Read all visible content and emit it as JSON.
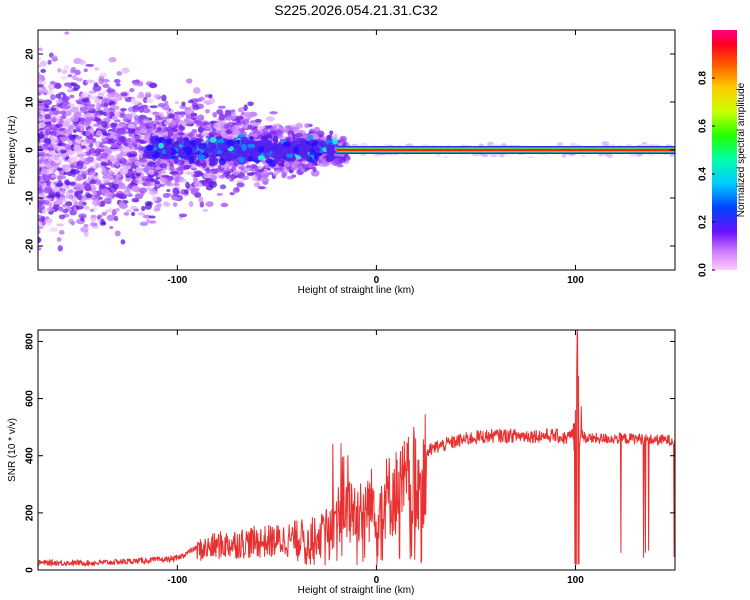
{
  "chart_data": [
    {
      "type": "heatmap",
      "title": "S225.2026.054.21.31.C32",
      "xlabel": "Height of straight line (km)",
      "ylabel": "Frequency (Hz)",
      "xlim": [
        -170,
        150
      ],
      "ylim": [
        -25,
        25
      ],
      "x_ticks": [
        -100,
        0,
        100
      ],
      "y_ticks": [
        20,
        10,
        0,
        -10,
        -20
      ],
      "colorbar": {
        "label": "Normalized spectral amplitude",
        "range": [
          0.0,
          1.0
        ],
        "ticks": [
          "0.0",
          "0.2",
          "0.4",
          "0.6",
          "0.8"
        ],
        "colormap": [
          "#ff99ff",
          "#9933ff",
          "#3311ff",
          "#0088ff",
          "#00ffcc",
          "#00ff00",
          "#ccff00",
          "#ffff00",
          "#ff8800",
          "#ff0000",
          "#ff0066"
        ]
      },
      "features": {
        "carrier_line": {
          "x_range": [
            -20,
            150
          ],
          "frequency": 0,
          "amplitude": 0.9
        },
        "noise_scatter_extent": {
          "x_range": [
            -170,
            -15
          ],
          "frequency_halfwidth_at_left": 25,
          "frequency_halfwidth_at_right": 3
        }
      }
    },
    {
      "type": "line",
      "xlabel": "Height of straight line (km)",
      "ylabel": "SNR (10 * v/v)",
      "xlim": [
        -170,
        150
      ],
      "ylim": [
        0,
        840
      ],
      "x_ticks": [
        -100,
        0,
        100
      ],
      "y_ticks": [
        0,
        200,
        400,
        600,
        800
      ],
      "color": "#e83030",
      "series": [
        {
          "x": [
            -170,
            -140,
            -110,
            -100,
            -90,
            -80,
            -70,
            -60,
            -50,
            -40,
            -30,
            -25,
            -20,
            -15,
            -10,
            -5,
            0,
            5,
            10,
            15,
            20,
            25,
            30,
            40,
            50,
            60,
            70,
            80,
            90,
            95,
            100,
            101,
            102,
            105,
            110,
            120,
            130,
            140,
            150
          ],
          "y": [
            25,
            25,
            35,
            40,
            80,
            100,
            110,
            115,
            120,
            130,
            140,
            160,
            220,
            230,
            250,
            260,
            280,
            300,
            320,
            350,
            380,
            410,
            430,
            450,
            465,
            470,
            470,
            470,
            470,
            460,
            480,
            840,
            500,
            460,
            460,
            460,
            460,
            455,
            455
          ]
        }
      ]
    }
  ]
}
